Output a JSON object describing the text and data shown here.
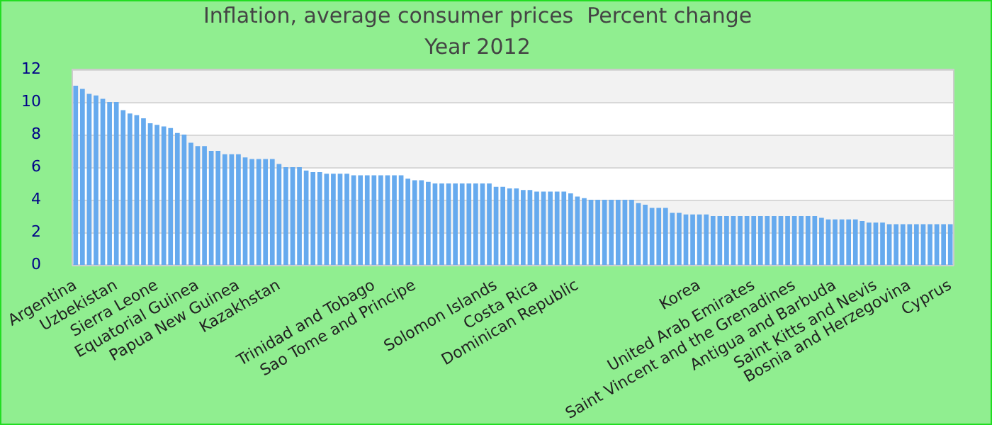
{
  "chart_data": {
    "type": "bar",
    "title": "Inflation, average consumer prices  Percent change",
    "subtitle": "Year 2012",
    "categories": [
      "Argentina",
      null,
      null,
      null,
      null,
      null,
      "Uzbekistan",
      null,
      null,
      null,
      null,
      null,
      "Sierra Leone",
      null,
      null,
      null,
      null,
      null,
      "Equatorial Guinea",
      null,
      null,
      null,
      null,
      null,
      "Papua New Guinea",
      null,
      null,
      null,
      null,
      null,
      "Kazakhstan",
      null,
      null,
      null,
      null,
      null,
      null,
      null,
      null,
      null,
      null,
      null,
      null,
      null,
      "Trinidad and Tobago",
      null,
      null,
      null,
      null,
      null,
      "Sao Tome and Principe",
      null,
      null,
      null,
      null,
      null,
      null,
      null,
      null,
      null,
      null,
      null,
      "Solomon Islands",
      null,
      null,
      null,
      null,
      null,
      "Costa Rica",
      null,
      null,
      null,
      null,
      null,
      "Dominican Republic",
      null,
      null,
      null,
      null,
      null,
      null,
      null,
      null,
      null,
      null,
      null,
      null,
      null,
      null,
      null,
      null,
      null,
      "Korea",
      null,
      null,
      null,
      null,
      null,
      null,
      null,
      "United Arab Emirates",
      null,
      null,
      null,
      null,
      null,
      "Saint Vincent and the Grenadines",
      null,
      null,
      null,
      null,
      null,
      "Antigua and Barbuda",
      null,
      null,
      null,
      null,
      null,
      "Saint Kitts and Nevis",
      null,
      null,
      null,
      null,
      "Bosnia and Herzegovina",
      null,
      null,
      null,
      null,
      null,
      "Cyprus"
    ],
    "values": [
      11.0,
      10.8,
      10.5,
      10.4,
      10.2,
      10.0,
      10.0,
      9.5,
      9.3,
      9.2,
      9.0,
      8.7,
      8.6,
      8.5,
      8.4,
      8.1,
      8.0,
      7.5,
      7.3,
      7.3,
      7.0,
      7.0,
      6.8,
      6.8,
      6.8,
      6.6,
      6.5,
      6.5,
      6.5,
      6.5,
      6.2,
      6.0,
      6.0,
      6.0,
      5.8,
      5.7,
      5.7,
      5.6,
      5.6,
      5.6,
      5.6,
      5.5,
      5.5,
      5.5,
      5.5,
      5.5,
      5.5,
      5.5,
      5.5,
      5.3,
      5.2,
      5.2,
      5.1,
      5.0,
      5.0,
      5.0,
      5.0,
      5.0,
      5.0,
      5.0,
      5.0,
      5.0,
      4.8,
      4.8,
      4.7,
      4.7,
      4.6,
      4.6,
      4.5,
      4.5,
      4.5,
      4.5,
      4.5,
      4.4,
      4.2,
      4.1,
      4.0,
      4.0,
      4.0,
      4.0,
      4.0,
      4.0,
      4.0,
      3.8,
      3.7,
      3.5,
      3.5,
      3.5,
      3.2,
      3.2,
      3.1,
      3.1,
      3.1,
      3.1,
      3.0,
      3.0,
      3.0,
      3.0,
      3.0,
      3.0,
      3.0,
      3.0,
      3.0,
      3.0,
      3.0,
      3.0,
      3.0,
      3.0,
      3.0,
      3.0,
      2.9,
      2.8,
      2.8,
      2.8,
      2.8,
      2.8,
      2.7,
      2.6,
      2.6,
      2.6,
      2.5,
      2.5,
      2.5,
      2.5,
      2.5,
      2.5,
      2.5,
      2.5,
      2.5,
      2.5
    ],
    "color": "#66aaee",
    "ylim": [
      0,
      12
    ],
    "yticks": [
      0,
      2,
      4,
      6,
      8,
      10,
      12
    ],
    "grid": true
  }
}
